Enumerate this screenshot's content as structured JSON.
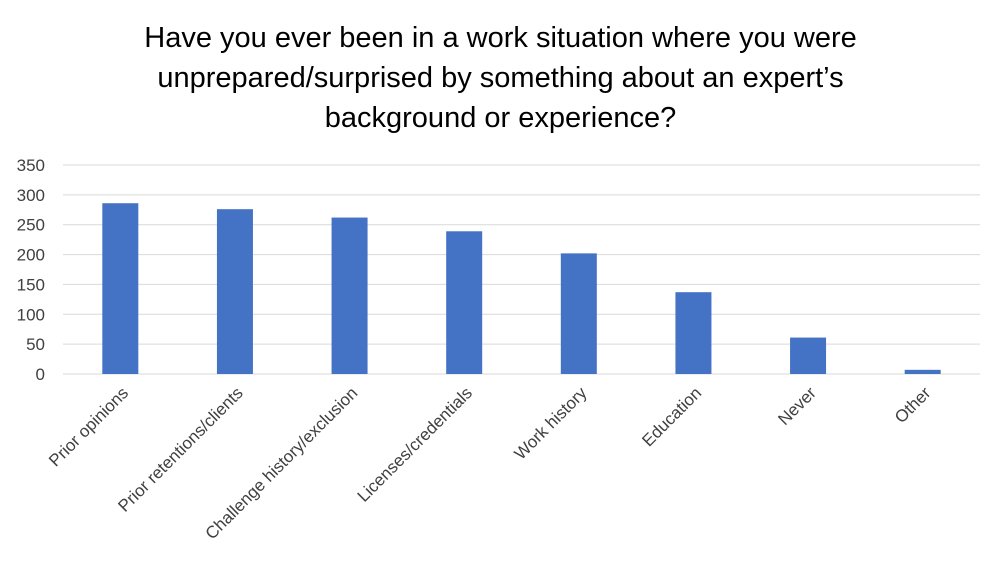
{
  "chart_data": {
    "type": "bar",
    "title_lines": [
      "Have you ever been in a work situation where you were",
      "unprepared/surprised by something about an expert’s",
      "background or experience?"
    ],
    "categories": [
      "Prior opinions",
      "Prior retentions/clients",
      "Challenge history/exclusion",
      "Licenses/credentials",
      "Work history",
      "Education",
      "Never",
      "Other"
    ],
    "values": [
      286,
      276,
      262,
      239,
      202,
      137,
      61,
      7
    ],
    "ylim": [
      0,
      350
    ],
    "yticks": [
      "0",
      "50",
      "100",
      "150",
      "200",
      "250",
      "300",
      "350"
    ],
    "xlabel": "",
    "ylabel": "",
    "grid": true,
    "legend": "none",
    "colors": {
      "bar": "#4472C4",
      "grid": "#D9D9D9",
      "text": "#000000",
      "tick_text": "#404040"
    }
  }
}
